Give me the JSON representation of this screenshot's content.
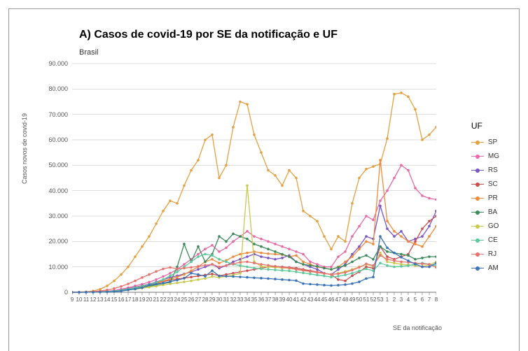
{
  "chart": {
    "type": "line",
    "title": "A) Casos de covid-19 por SE da notificação e UF",
    "subtitle": "Brasil",
    "yaxis_label": "Casos novos de covid-19",
    "xaxis_label": "SE da notificação",
    "title_fontsize": 16,
    "label_fontsize": 9,
    "tick_fontsize": 9,
    "background_color": "#ffffff",
    "grid_color": "#bbbbbb",
    "ylim": [
      0,
      90000
    ],
    "yticks": [
      0,
      10000,
      20000,
      30000,
      40000,
      50000,
      60000,
      70000,
      80000,
      90000
    ],
    "ytick_labels": [
      "0",
      "10.000",
      "20.000",
      "30.000",
      "40.000",
      "50.000",
      "60.000",
      "70.000",
      "80.000",
      "90.000"
    ],
    "x_categories": [
      "9",
      "10",
      "11",
      "12",
      "13",
      "14",
      "15",
      "16",
      "17",
      "18",
      "19",
      "20",
      "21",
      "22",
      "23",
      "24",
      "25",
      "26",
      "27",
      "28",
      "29",
      "30",
      "31",
      "32",
      "33",
      "34",
      "35",
      "36",
      "37",
      "38",
      "39",
      "40",
      "41",
      "42",
      "43",
      "44",
      "45",
      "46",
      "47",
      "48",
      "49",
      "50",
      "51",
      "52",
      "53",
      "1",
      "2",
      "3",
      "4",
      "5",
      "6",
      "7",
      "8"
    ],
    "legend_title": "UF",
    "series": [
      {
        "name": "SP",
        "color": "#e6a040",
        "marker": "circle",
        "values": [
          0,
          100,
          200,
          500,
          1200,
          2500,
          4500,
          7000,
          10000,
          14000,
          18000,
          22000,
          27000,
          32000,
          36000,
          35000,
          42000,
          48000,
          52000,
          60000,
          62000,
          45000,
          50000,
          65000,
          75000,
          74000,
          62000,
          55000,
          48000,
          46000,
          42000,
          48000,
          45000,
          32000,
          30000,
          28000,
          22000,
          17000,
          22000,
          20000,
          35000,
          45000,
          48500,
          49500,
          50500,
          60500,
          78000,
          78500,
          77000,
          72000,
          60000,
          62000,
          65000
        ]
      },
      {
        "name": "MG",
        "color": "#e86aa6",
        "marker": "circle",
        "values": [
          0,
          0,
          50,
          100,
          200,
          400,
          700,
          1200,
          1800,
          2500,
          3200,
          4000,
          5000,
          6200,
          7500,
          9000,
          11000,
          13000,
          15000,
          17000,
          18500,
          16000,
          17500,
          20000,
          22000,
          24000,
          22000,
          21000,
          20000,
          19000,
          18000,
          17000,
          16000,
          15000,
          12000,
          11000,
          10000,
          10000,
          14000,
          16000,
          22000,
          26000,
          30000,
          28500,
          36000,
          40000,
          45000,
          50000,
          48000,
          41000,
          38000,
          37000,
          36500
        ]
      },
      {
        "name": "RS",
        "color": "#7a55c7",
        "marker": "circle",
        "values": [
          0,
          0,
          40,
          80,
          160,
          300,
          550,
          900,
          1400,
          2000,
          2600,
          3200,
          4000,
          5000,
          5800,
          6500,
          7200,
          8000,
          9000,
          10000,
          11000,
          9500,
          10500,
          12000,
          13000,
          14000,
          15000,
          14000,
          13500,
          13000,
          13500,
          14500,
          12000,
          11000,
          10000,
          9000,
          7500,
          7000,
          9000,
          11000,
          15000,
          18000,
          22000,
          21000,
          34000,
          25000,
          22000,
          24000,
          20000,
          21000,
          22000,
          26000,
          32000
        ]
      },
      {
        "name": "SC",
        "color": "#c94f4f",
        "marker": "circle",
        "values": [
          0,
          0,
          30,
          60,
          120,
          240,
          400,
          700,
          1100,
          1600,
          2200,
          2800,
          3500,
          4200,
          4800,
          5200,
          5600,
          6000,
          6400,
          6800,
          7200,
          6500,
          7000,
          7500,
          8000,
          8500,
          9000,
          9500,
          10000,
          10200,
          10000,
          9800,
          9500,
          9000,
          8500,
          8000,
          7500,
          7000,
          5000,
          4500,
          6500,
          8000,
          10000,
          9500,
          18000,
          14000,
          13000,
          14000,
          15000,
          20000,
          25000,
          28000,
          30000
        ]
      },
      {
        "name": "PR",
        "color": "#f08a3c",
        "marker": "circle",
        "values": [
          0,
          0,
          35,
          70,
          150,
          280,
          480,
          800,
          1250,
          1800,
          2400,
          3000,
          3700,
          4500,
          5200,
          6000,
          7000,
          8500,
          10000,
          12000,
          13000,
          11500,
          12500,
          14000,
          15000,
          15500,
          16000,
          15500,
          15200,
          15000,
          14800,
          14000,
          14500,
          12000,
          11000,
          10000,
          9500,
          9000,
          10000,
          12000,
          14000,
          17000,
          20000,
          19000,
          52000,
          28000,
          24000,
          22000,
          20000,
          19000,
          18000,
          22000,
          26000
        ]
      },
      {
        "name": "BA",
        "color": "#3b8a5a",
        "marker": "circle",
        "values": [
          0,
          0,
          25,
          55,
          110,
          210,
          380,
          650,
          1000,
          1450,
          1900,
          2400,
          2900,
          3400,
          3900,
          10000,
          19000,
          12000,
          18000,
          12000,
          15000,
          22000,
          20000,
          23000,
          22000,
          21000,
          19000,
          18000,
          17000,
          16000,
          15000,
          14000,
          12000,
          11000,
          10500,
          10200,
          9500,
          9000,
          9800,
          10500,
          12000,
          13500,
          14500,
          13000,
          18000,
          16000,
          15500,
          15000,
          14500,
          13000,
          13500,
          14000,
          14000
        ]
      },
      {
        "name": "GO",
        "color": "#c9c94f",
        "marker": "circle",
        "values": [
          0,
          0,
          20,
          45,
          90,
          180,
          320,
          550,
          850,
          1200,
          1600,
          2000,
          2400,
          2900,
          3300,
          3700,
          4100,
          4500,
          5000,
          5400,
          6200,
          5800,
          6300,
          6800,
          7400,
          42000,
          12000,
          10200,
          10000,
          9800,
          9600,
          9400,
          9000,
          8600,
          8200,
          7800,
          7400,
          7000,
          7500,
          8200,
          9000,
          10000,
          11000,
          10200,
          15500,
          12000,
          11500,
          11000,
          10800,
          10500,
          10200,
          10800,
          12000
        ]
      },
      {
        "name": "CE",
        "color": "#5cc99a",
        "marker": "circle",
        "values": [
          0,
          0,
          30,
          60,
          130,
          250,
          450,
          780,
          1200,
          1700,
          2300,
          3000,
          3800,
          5000,
          6500,
          8000,
          10000,
          12000,
          14000,
          15000,
          14500,
          13000,
          12000,
          11000,
          10500,
          10000,
          9500,
          9200,
          9000,
          8800,
          8600,
          8400,
          8000,
          7600,
          7200,
          6800,
          6400,
          6000,
          6300,
          6800,
          7500,
          8400,
          9200,
          8500,
          11500,
          10500,
          10000,
          10200,
          10500,
          11000,
          11500,
          11000,
          10500
        ]
      },
      {
        "name": "RJ",
        "color": "#e6736f",
        "marker": "circle",
        "values": [
          0,
          50,
          100,
          250,
          500,
          900,
          1500,
          2300,
          3300,
          4500,
          5800,
          7000,
          8200,
          9200,
          9800,
          9200,
          9500,
          9800,
          10200,
          10600,
          11000,
          10000,
          10500,
          11200,
          11800,
          12000,
          11500,
          11000,
          10600,
          10200,
          9800,
          9600,
          9000,
          8600,
          8200,
          7800,
          7400,
          7000,
          7300,
          7800,
          8700,
          9800,
          11200,
          10500,
          14500,
          13000,
          12400,
          12000,
          11800,
          11500,
          11200,
          11000,
          9800
        ]
      },
      {
        "name": "AM",
        "color": "#3b73b8",
        "marker": "circle",
        "values": [
          0,
          0,
          15,
          35,
          70,
          140,
          260,
          470,
          900,
          1300,
          1800,
          2800,
          3200,
          3600,
          4200,
          4800,
          5500,
          7500,
          7000,
          6300,
          8500,
          6400,
          6300,
          6200,
          6050,
          5900,
          5700,
          5550,
          5400,
          5200,
          5000,
          4800,
          4600,
          3400,
          3200,
          3020,
          2800,
          2650,
          2780,
          3000,
          3400,
          4100,
          5400,
          6000,
          22000,
          17500,
          15500,
          13800,
          12400,
          11100,
          10000,
          10000,
          11500
        ]
      }
    ]
  }
}
